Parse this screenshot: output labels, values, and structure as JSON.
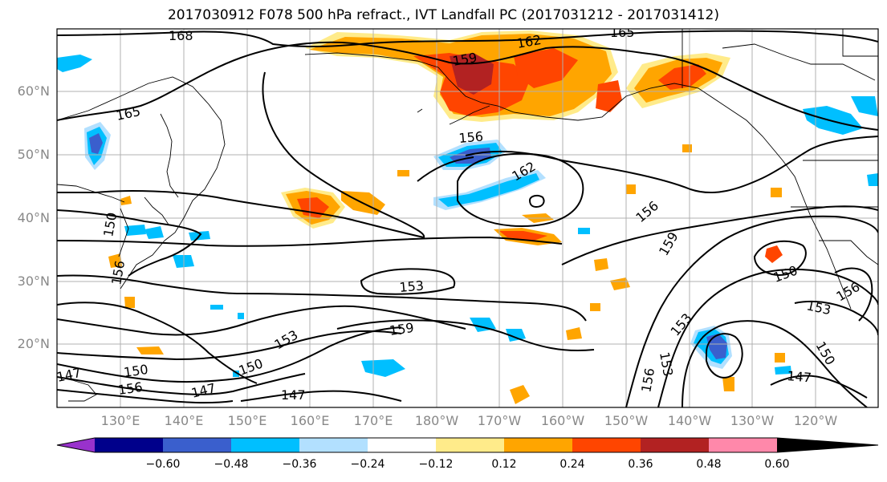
{
  "title": "2017030912 F078 500 hPa refract., IVT Landfall PC (2017031212 - 2017031412)",
  "lat_labels": [
    "60°N",
    "50°N",
    "40°N",
    "30°N",
    "20°N"
  ],
  "lon_labels": [
    "130°E",
    "140°E",
    "150°E",
    "160°E",
    "170°E",
    "180°W",
    "170°W",
    "160°W",
    "150°W",
    "140°W",
    "130°W",
    "120°W"
  ],
  "contour_labels": [
    "168",
    "165",
    "162",
    "159",
    "156",
    "162",
    "165",
    "156",
    "159",
    "150",
    "153",
    "153",
    "159",
    "153",
    "150",
    "156",
    "147",
    "147",
    "150",
    "147",
    "156",
    "153",
    "150",
    "156",
    "150",
    "153",
    "156",
    "147"
  ],
  "colorbar": {
    "ticks": [
      "−0.60",
      "−0.48",
      "−0.36",
      "−0.24",
      "−0.12",
      "0.12",
      "0.24",
      "0.36",
      "0.48",
      "0.60"
    ],
    "colors": [
      "#9932CC",
      "#00008B",
      "#3A5FCD",
      "#00BFFF",
      "#B2E0FF",
      "#FFFFFF",
      "#FFEB8A",
      "#FFA500",
      "#FF4500",
      "#B22222",
      "#FF88AA"
    ]
  },
  "colors": {
    "neg_strong": "#3A5FCD",
    "neg_mid": "#00BFFF",
    "neg_weak": "#B2E0FF",
    "pos_weak": "#FFEB8A",
    "pos_mid": "#FFA500",
    "pos_strong": "#FF4500",
    "pos_max": "#B22222"
  }
}
